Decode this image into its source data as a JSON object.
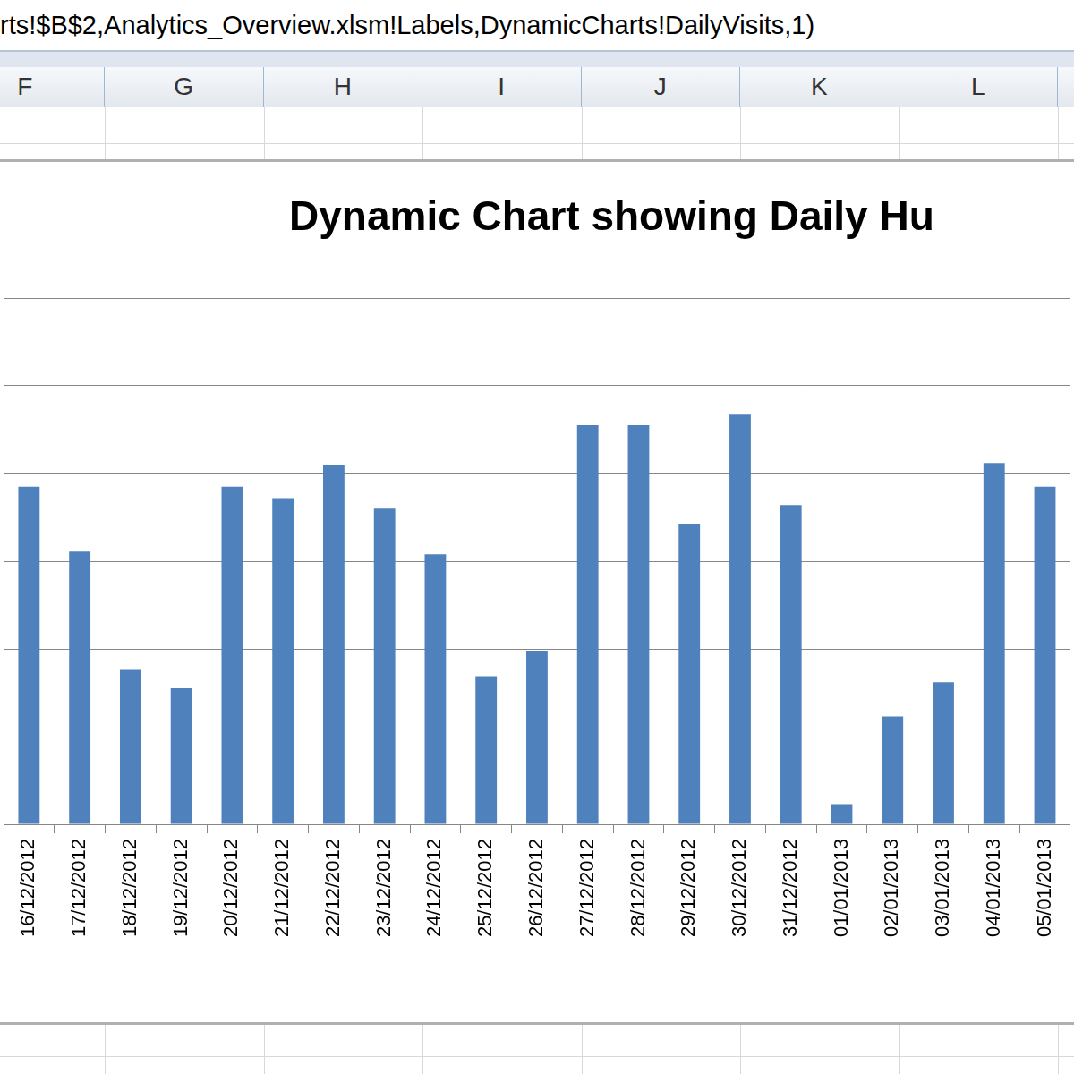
{
  "sheet": {
    "formula_bar": "rts!$B$2,Analytics_Overview.xlsm!Labels,DynamicCharts!DailyVisits,1)",
    "columns": [
      "F",
      "G",
      "H",
      "I",
      "J",
      "K",
      "L"
    ]
  },
  "chart_data": {
    "type": "bar",
    "title": "Dynamic Chart showing Daily Hu",
    "categories": [
      "16/12/2012",
      "17/12/2012",
      "18/12/2012",
      "19/12/2012",
      "20/12/2012",
      "21/12/2012",
      "22/12/2012",
      "23/12/2012",
      "24/12/2012",
      "25/12/2012",
      "26/12/2012",
      "27/12/2012",
      "28/12/2012",
      "29/12/2012",
      "30/12/2012",
      "31/12/2012",
      "01/01/2013",
      "02/01/2013",
      "03/01/2013",
      "04/01/2013",
      "05/01/2013"
    ],
    "values": [
      385,
      311,
      176,
      155,
      385,
      372,
      410,
      360,
      308,
      169,
      198,
      455,
      455,
      342,
      467,
      364,
      23,
      123,
      162,
      412,
      385
    ],
    "color": "#4f81bd",
    "ylim": [
      0,
      600
    ],
    "yticks": [
      0,
      100,
      200,
      300,
      400,
      500,
      600
    ],
    "grid": true,
    "tick_labels": "x"
  }
}
